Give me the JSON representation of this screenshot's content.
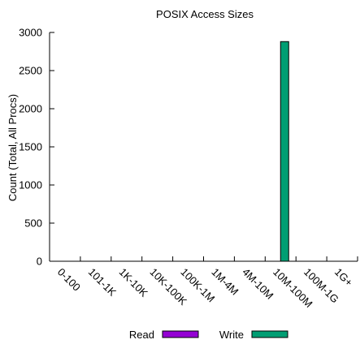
{
  "chart_data": {
    "type": "bar",
    "title": "POSIX Access Sizes",
    "xlabel": "",
    "ylabel": "Count (Total, All Procs)",
    "ylim": [
      0,
      3000
    ],
    "yticks": [
      0,
      500,
      1000,
      1500,
      2000,
      2500,
      3000
    ],
    "categories": [
      "0-100",
      "101-1K",
      "1K-10K",
      "10K-100K",
      "100K-1M",
      "1M-4M",
      "4M-10M",
      "10M-100M",
      "100M-1G",
      "1G+"
    ],
    "series": [
      {
        "name": "Read",
        "color": "#9400d3",
        "values": [
          0,
          0,
          0,
          0,
          0,
          0,
          0,
          0,
          0,
          0
        ]
      },
      {
        "name": "Write",
        "color": "#009e73",
        "values": [
          0,
          0,
          0,
          0,
          0,
          0,
          0,
          2880,
          0,
          0
        ]
      }
    ],
    "grid": false,
    "legend_position": "bottom-center"
  }
}
